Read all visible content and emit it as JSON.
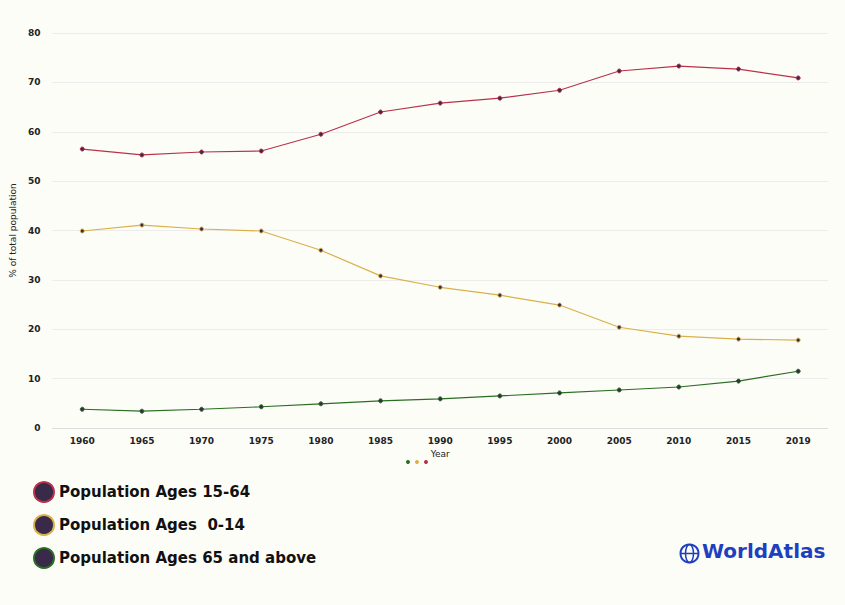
{
  "chart_data": {
    "type": "line",
    "x_label": "Year",
    "y_label": "% of total population",
    "categories": [
      "1960",
      "1965",
      "1970",
      "1975",
      "1980",
      "1985",
      "1990",
      "1995",
      "2000",
      "2005",
      "2010",
      "2015",
      "2019"
    ],
    "series": [
      {
        "name": "Population Ages 15-64",
        "color": "#b8324a",
        "values": [
          56.5,
          55.3,
          55.9,
          56.1,
          59.5,
          64.0,
          65.8,
          66.8,
          68.4,
          72.3,
          73.3,
          72.7,
          70.9
        ]
      },
      {
        "name": "Population Ages  0-14",
        "color": "#d9b04a",
        "values": [
          39.9,
          41.1,
          40.3,
          39.9,
          36.0,
          30.8,
          28.5,
          26.9,
          24.9,
          20.4,
          18.6,
          18.0,
          17.8
        ]
      },
      {
        "name": "Population Ages 65 and above",
        "color": "#2a6e22",
        "values": [
          3.8,
          3.4,
          3.8,
          4.3,
          4.9,
          5.5,
          5.9,
          6.5,
          7.1,
          7.7,
          8.3,
          9.5,
          11.5
        ]
      }
    ],
    "ylim": [
      0,
      80
    ],
    "yticks": [
      0,
      10,
      20,
      30,
      40,
      50,
      60,
      70,
      80
    ],
    "grid": true,
    "legend": "bottom-left",
    "marker": "circle",
    "annotations": [
      "WorldAtlas"
    ]
  }
}
